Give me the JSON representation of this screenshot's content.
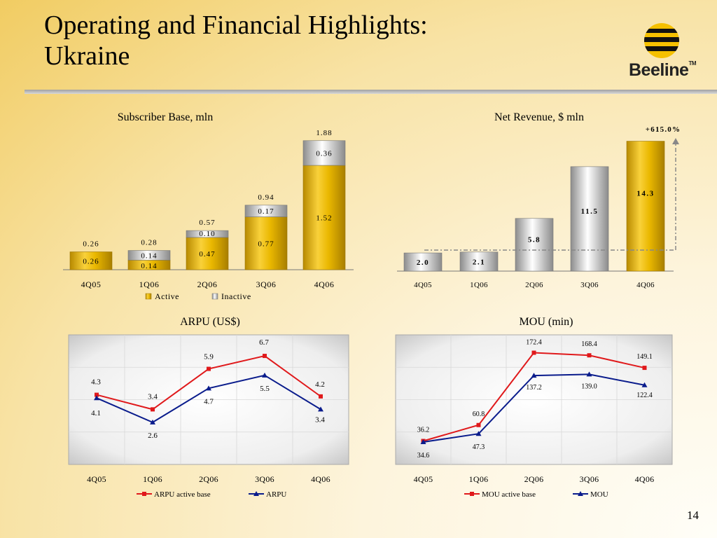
{
  "page": {
    "title_line1": "Operating and Financial Highlights:",
    "title_line2": "Ukraine",
    "logo_text": "Beeline",
    "logo_tm": "TM",
    "page_number": "14"
  },
  "colors": {
    "gold": "#e9b400",
    "silver": "#c8c8c8",
    "red": "#e0191b",
    "navy": "#0a1c8c"
  },
  "chart_data": [
    {
      "type": "bar",
      "stacked": true,
      "title": "Subscriber Base, mln",
      "categories": [
        "4Q05",
        "1Q06",
        "2Q06",
        "3Q06",
        "4Q06"
      ],
      "totals": [
        "0.26",
        "0.28",
        "0.57",
        "0.94",
        "1.88"
      ],
      "series": [
        {
          "name": "Active",
          "values": [
            0.26,
            0.14,
            0.47,
            0.77,
            1.52
          ],
          "labels": [
            "0.26",
            "0.14",
            "0.47",
            "0.77",
            "1.52"
          ]
        },
        {
          "name": "Inactive",
          "values": [
            0.0,
            0.14,
            0.1,
            0.17,
            0.36
          ],
          "labels": [
            "",
            "0.14",
            "0.10",
            "0.17",
            "0.36"
          ]
        }
      ],
      "ylim": [
        0,
        2.0
      ],
      "legend_position": "bottom"
    },
    {
      "type": "bar",
      "title": "Net Revenue, $ mln",
      "categories": [
        "4Q05",
        "1Q06",
        "2Q06",
        "3Q06",
        "4Q06"
      ],
      "values": [
        2.0,
        2.1,
        5.8,
        11.5,
        14.3
      ],
      "labels": [
        "2.0",
        "2.1",
        "5.8",
        "11.5",
        "14.3"
      ],
      "annotation": "+615.0%",
      "ylim": [
        0,
        15.5
      ]
    },
    {
      "type": "line",
      "title": "ARPU (US$)",
      "categories": [
        "4Q05",
        "1Q06",
        "2Q06",
        "3Q06",
        "4Q06"
      ],
      "series": [
        {
          "name": "ARPU active base",
          "values": [
            4.3,
            3.4,
            5.9,
            6.7,
            4.2
          ],
          "labels": [
            "4.3",
            "3.4",
            "5.9",
            "6.7",
            "4.2"
          ]
        },
        {
          "name": "ARPU",
          "values": [
            4.1,
            2.6,
            4.7,
            5.5,
            3.4
          ],
          "labels": [
            "4.1",
            "2.6",
            "4.7",
            "5.5",
            "3.4"
          ]
        }
      ],
      "ylim": [
        0,
        8
      ],
      "grid": true,
      "legend_position": "bottom"
    },
    {
      "type": "line",
      "title": "MOU (min)",
      "categories": [
        "4Q05",
        "1Q06",
        "2Q06",
        "3Q06",
        "4Q06"
      ],
      "series": [
        {
          "name": "MOU active base",
          "values": [
            36.2,
            60.8,
            172.4,
            168.4,
            149.1
          ],
          "labels": [
            "36.2",
            "60.8",
            "172.4",
            "168.4",
            "149.1"
          ]
        },
        {
          "name": "MOU",
          "values": [
            34.6,
            47.3,
            137.2,
            139.0,
            122.4
          ],
          "labels": [
            "34.6",
            "47.3",
            "137.2",
            "139.0",
            "122.4"
          ]
        }
      ],
      "ylim": [
        0,
        200
      ],
      "grid": true,
      "legend_position": "bottom"
    }
  ]
}
